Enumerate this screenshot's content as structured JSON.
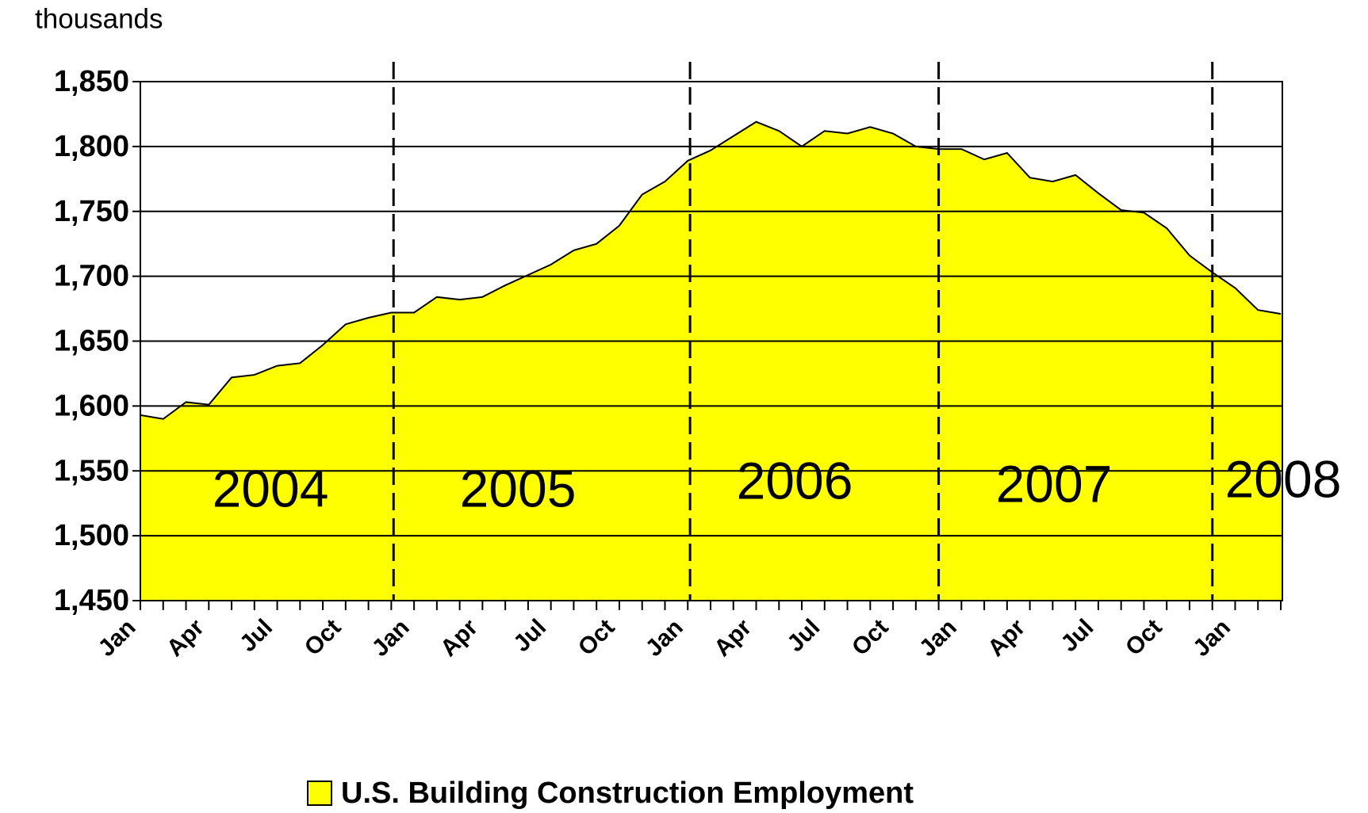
{
  "chart_data": {
    "type": "area",
    "y_unit": "thousands",
    "categories": [
      "Jan",
      null,
      null,
      "Apr",
      null,
      null,
      "Jul",
      null,
      null,
      "Oct",
      null,
      null,
      "Jan",
      null,
      null,
      "Apr",
      null,
      null,
      "Jul",
      null,
      null,
      "Oct",
      null,
      null,
      "Jan",
      null,
      null,
      "Apr",
      null,
      null,
      "Jul",
      null,
      null,
      "Oct",
      null,
      null,
      "Jan",
      null,
      null,
      "Apr",
      null,
      null,
      "Jul",
      null,
      null,
      "Oct",
      null,
      null,
      "Jan",
      null,
      null
    ],
    "series": [
      {
        "name": "U.S. Building Construction Employment",
        "color": "#ffff00",
        "values": [
          1593,
          1590,
          1603,
          1601,
          1622,
          1624,
          1631,
          1633,
          1647,
          1663,
          1668,
          1672,
          1672,
          1684,
          1682,
          1684,
          1693,
          1701,
          1709,
          1720,
          1725,
          1739,
          1763,
          1773,
          1789,
          1797,
          1808,
          1819,
          1812,
          1800,
          1812,
          1810,
          1815,
          1810,
          1800,
          1798,
          1798,
          1790,
          1795,
          1776,
          1773,
          1778,
          1764,
          1751,
          1749,
          1737,
          1716,
          1703,
          1691,
          1674,
          1671
        ]
      }
    ],
    "ylim": [
      1450,
      1850
    ],
    "yticks": [
      {
        "value": 1450,
        "label": "1,450"
      },
      {
        "value": 1500,
        "label": "1,500"
      },
      {
        "value": 1550,
        "label": "1,550"
      },
      {
        "value": 1600,
        "label": "1,600"
      },
      {
        "value": 1650,
        "label": "1,650"
      },
      {
        "value": 1700,
        "label": "1,700"
      },
      {
        "value": 1750,
        "label": "1,750"
      },
      {
        "value": 1800,
        "label": "1,800"
      },
      {
        "value": 1850,
        "label": "1,850"
      }
    ],
    "grid": true,
    "annotations": [
      "2004",
      "2005",
      "2006",
      "2007",
      "2008"
    ]
  }
}
